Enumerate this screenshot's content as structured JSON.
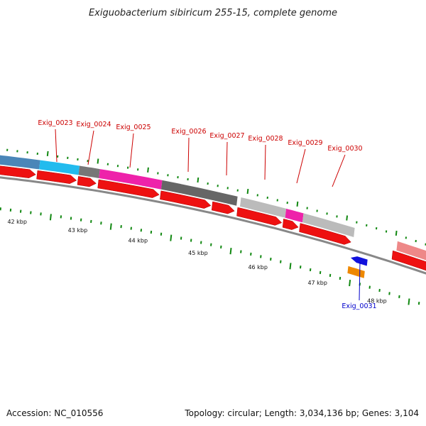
{
  "title": "Exiguobacterium sibiricum 255-15, complete genome",
  "footer": {
    "accession": "Accession: NC_010556",
    "summary": "Topology: circular; Length: 3,034,136 bp; Genes: 3,104"
  },
  "colors": {
    "forward_gene": "#ee1111",
    "reverse_gene_blue": "#1111dd",
    "reverse_gene_orange": "#ee8800",
    "label_red": "#cc0000",
    "label_blue": "#0000cc",
    "minor_tick": "#118811",
    "backbone": "#888888"
  },
  "scale": {
    "unit": "kbp",
    "labels": [
      {
        "kbp": 42,
        "text": "42 kbp"
      },
      {
        "kbp": 43,
        "text": "43 kbp"
      },
      {
        "kbp": 44,
        "text": "44 kbp"
      },
      {
        "kbp": 45,
        "text": "45 kbp"
      },
      {
        "kbp": 46,
        "text": "46 kbp"
      },
      {
        "kbp": 47,
        "text": "47 kbp"
      },
      {
        "kbp": 48,
        "text": "48 kbp"
      }
    ]
  },
  "gene_labels": [
    {
      "text": "Exig_0023",
      "strand": "forward"
    },
    {
      "text": "Exig_0024",
      "strand": "forward"
    },
    {
      "text": "Exig_0025",
      "strand": "forward"
    },
    {
      "text": "Exig_0026",
      "strand": "forward"
    },
    {
      "text": "Exig_0027",
      "strand": "forward"
    },
    {
      "text": "Exig_0028",
      "strand": "forward"
    },
    {
      "text": "Exig_0029",
      "strand": "forward"
    },
    {
      "text": "Exig_0030",
      "strand": "forward"
    },
    {
      "text": "Exig_0031",
      "strand": "reverse"
    }
  ],
  "cog_band_colors": [
    "#4a86b8",
    "#22bbee",
    "#777777",
    "#ee22aa",
    "#666666",
    "#bbbbbb",
    "#ee22aa",
    "#bbbbbb",
    "#ee8888"
  ]
}
